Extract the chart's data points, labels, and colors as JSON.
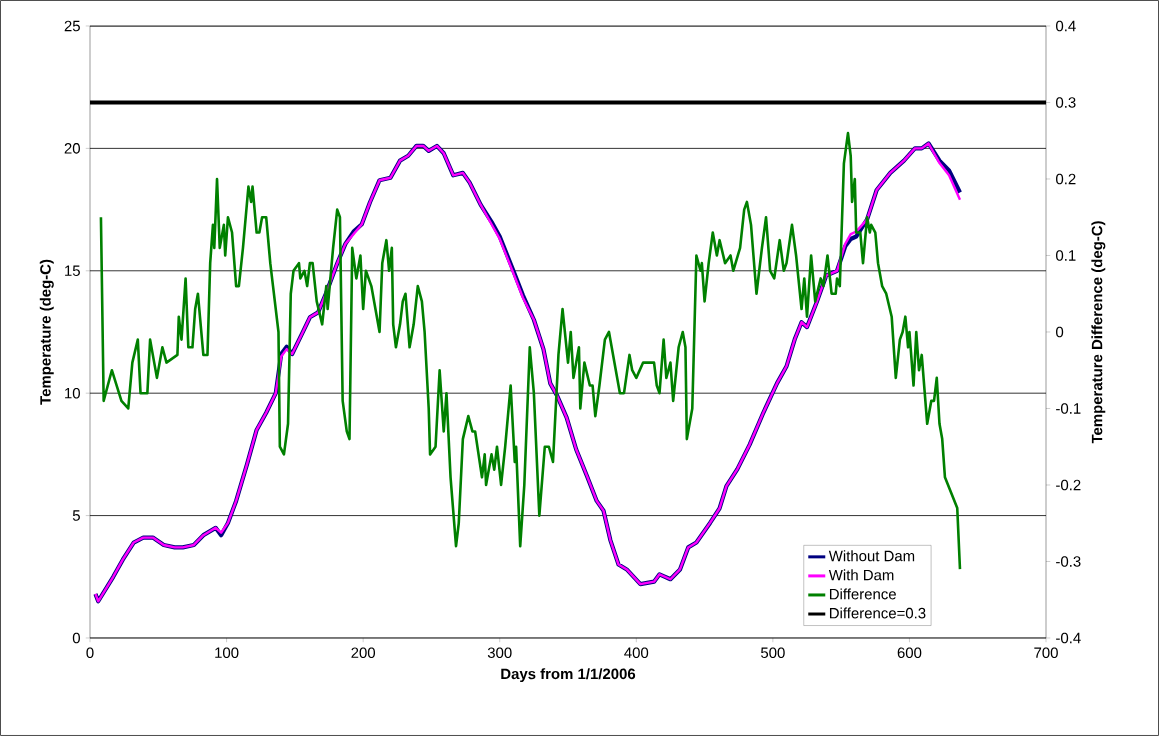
{
  "chart_data": {
    "type": "line",
    "xlabel": "Days from 1/1/2006",
    "ylabel": "Temperature (deg-C)",
    "y2label": "Temperature Difference (deg-C)",
    "xlim": [
      0,
      700
    ],
    "xticks": [
      0,
      100,
      200,
      300,
      400,
      500,
      600,
      700
    ],
    "ylim": [
      0,
      25
    ],
    "yticks": [
      0,
      5,
      10,
      15,
      20,
      25
    ],
    "y2lim": [
      -0.4,
      0.4
    ],
    "y2ticks": [
      -0.4,
      -0.3,
      -0.2,
      -0.1,
      0,
      0.1,
      0.2,
      0.3,
      0.4
    ],
    "grid": "y",
    "legend": "bottom right",
    "series": [
      {
        "name": "Without Dam",
        "color": "#000080",
        "x": [
          4,
          6,
          17,
          24,
          32,
          39,
          46,
          54,
          62,
          68,
          76,
          83,
          92,
          96,
          101,
          107,
          115,
          122,
          129,
          136,
          140,
          144,
          148,
          155,
          161,
          167,
          173,
          181,
          187,
          193,
          199,
          205,
          212,
          220,
          227,
          233,
          239,
          244,
          248,
          254,
          259,
          266,
          273,
          278,
          286,
          294,
          300,
          310,
          317,
          325,
          332,
          337,
          342,
          349,
          356,
          364,
          371,
          376,
          381,
          387,
          393,
          403,
          413,
          417,
          425,
          432,
          438,
          444,
          454,
          461,
          466,
          474,
          483,
          493,
          503,
          510,
          516,
          521,
          525,
          532,
          539,
          547,
          553,
          557,
          561,
          569,
          576,
          586,
          596,
          604,
          609,
          614,
          622,
          629,
          637
        ],
        "values": [
          1.8,
          1.5,
          2.5,
          3.2,
          3.9,
          4.1,
          4.1,
          3.8,
          3.7,
          3.7,
          3.8,
          4.2,
          4.5,
          4.2,
          4.7,
          5.6,
          7.1,
          8.5,
          9.2,
          10.0,
          11.6,
          11.9,
          11.6,
          12.4,
          13.1,
          13.3,
          14.1,
          15.3,
          16.1,
          16.6,
          16.9,
          17.8,
          18.7,
          18.8,
          19.5,
          19.7,
          20.1,
          20.1,
          19.9,
          20.1,
          19.8,
          18.9,
          19.0,
          18.6,
          17.7,
          17.0,
          16.4,
          15.0,
          14.0,
          13.0,
          11.8,
          10.4,
          9.9,
          9.0,
          7.7,
          6.6,
          5.6,
          5.2,
          4.0,
          3.0,
          2.8,
          2.2,
          2.3,
          2.6,
          2.4,
          2.8,
          3.7,
          3.9,
          4.7,
          5.3,
          6.2,
          6.9,
          7.9,
          9.2,
          10.4,
          11.1,
          12.2,
          12.9,
          12.7,
          13.7,
          14.8,
          15.0,
          16.0,
          16.3,
          16.4,
          17.1,
          18.3,
          19.0,
          19.5,
          20.0,
          20.0,
          20.2,
          19.5,
          19.1,
          18.2
        ]
      },
      {
        "name": "With Dam",
        "color": "#ff00ff",
        "x": [
          4,
          6,
          17,
          24,
          32,
          39,
          46,
          54,
          62,
          68,
          76,
          83,
          92,
          96,
          101,
          107,
          115,
          122,
          129,
          136,
          140,
          144,
          148,
          155,
          161,
          167,
          173,
          181,
          187,
          193,
          199,
          205,
          212,
          220,
          227,
          233,
          239,
          244,
          248,
          254,
          259,
          266,
          273,
          278,
          286,
          294,
          300,
          310,
          317,
          325,
          332,
          337,
          342,
          349,
          356,
          364,
          371,
          376,
          381,
          387,
          393,
          403,
          413,
          417,
          425,
          432,
          438,
          444,
          454,
          461,
          466,
          474,
          483,
          493,
          503,
          510,
          516,
          521,
          525,
          532,
          539,
          547,
          553,
          557,
          561,
          569,
          576,
          586,
          596,
          604,
          609,
          614,
          622,
          629,
          637
        ],
        "values": [
          1.8,
          1.5,
          2.5,
          3.2,
          3.9,
          4.1,
          4.1,
          3.8,
          3.7,
          3.7,
          3.8,
          4.2,
          4.5,
          4.3,
          4.7,
          5.6,
          7.1,
          8.5,
          9.2,
          10.0,
          11.5,
          11.8,
          11.6,
          12.4,
          13.1,
          13.3,
          14.1,
          15.3,
          16.1,
          16.5,
          16.9,
          17.8,
          18.7,
          18.8,
          19.5,
          19.7,
          20.1,
          20.1,
          19.9,
          20.1,
          19.8,
          18.9,
          19.0,
          18.6,
          17.7,
          16.9,
          16.3,
          14.9,
          13.9,
          13.0,
          11.8,
          10.4,
          9.9,
          9.0,
          7.7,
          6.6,
          5.6,
          5.2,
          4.0,
          3.0,
          2.8,
          2.2,
          2.3,
          2.6,
          2.4,
          2.8,
          3.7,
          3.9,
          4.7,
          5.3,
          6.2,
          6.9,
          7.9,
          9.2,
          10.4,
          11.1,
          12.2,
          12.9,
          12.7,
          13.7,
          14.8,
          15.0,
          16.1,
          16.5,
          16.6,
          17.1,
          18.3,
          19.0,
          19.5,
          20.0,
          20.0,
          20.2,
          19.4,
          18.9,
          17.9
        ]
      },
      {
        "name": "Difference",
        "color": "#008000",
        "axis": "y2",
        "x": [
          8,
          10,
          16,
          23,
          28,
          31,
          35,
          37,
          42,
          44,
          49,
          53,
          56,
          64,
          65,
          67,
          70,
          72,
          75,
          77,
          79,
          83,
          86,
          88,
          90,
          91,
          93,
          95,
          98,
          99,
          101,
          104,
          107,
          109,
          112,
          116,
          118,
          119,
          122,
          124,
          126,
          129,
          132,
          134,
          138,
          139,
          142,
          145,
          147,
          149,
          153,
          154,
          157,
          159,
          161,
          163,
          166,
          170,
          173,
          174,
          178,
          181,
          183,
          185,
          188,
          190,
          192,
          195,
          198,
          200,
          202,
          206,
          212,
          214,
          217,
          219,
          221,
          222,
          224,
          227,
          229,
          231,
          234,
          237,
          240,
          243,
          245,
          248,
          249,
          253,
          256,
          259,
          261,
          264,
          268,
          270,
          273,
          277,
          280,
          282,
          287,
          289,
          290,
          294,
          296,
          298,
          301,
          304,
          308,
          311,
          312,
          315,
          318,
          322,
          325,
          329,
          333,
          336,
          339,
          343,
          346,
          350,
          352,
          354,
          358,
          359,
          362,
          366,
          368,
          370,
          373,
          375,
          377,
          380,
          383,
          388,
          391,
          395,
          397,
          400,
          405,
          413,
          415,
          417,
          420,
          422,
          425,
          427,
          431,
          434,
          436,
          437,
          441,
          444,
          447,
          448,
          450,
          453,
          456,
          459,
          461,
          465,
          469,
          471,
          476,
          479,
          481,
          484,
          488,
          492,
          495,
          498,
          501,
          505,
          508,
          510,
          514,
          517,
          521,
          523,
          525,
          528,
          531,
          535,
          537,
          540,
          543,
          546,
          547,
          549,
          552,
          555,
          557,
          558,
          560,
          561,
          564,
          566,
          569,
          571,
          572,
          575,
          577,
          580,
          583,
          587,
          590,
          593,
          595,
          597,
          599,
          600,
          603,
          605,
          607,
          609,
          613,
          616,
          618,
          620,
          622,
          624,
          626,
          635,
          637
        ],
        "values": [
          0.15,
          -0.09,
          -0.05,
          -0.09,
          -0.1,
          -0.04,
          -0.01,
          -0.08,
          -0.08,
          -0.01,
          -0.06,
          -0.02,
          -0.04,
          -0.03,
          0.02,
          -0.01,
          0.07,
          -0.02,
          -0.02,
          0.03,
          0.05,
          -0.03,
          -0.03,
          0.09,
          0.14,
          0.11,
          0.2,
          0.11,
          0.14,
          0.1,
          0.15,
          0.13,
          0.06,
          0.06,
          0.11,
          0.19,
          0.17,
          0.19,
          0.13,
          0.13,
          0.15,
          0.15,
          0.09,
          0.06,
          0.0,
          -0.15,
          -0.16,
          -0.12,
          0.05,
          0.08,
          0.09,
          0.07,
          0.08,
          0.06,
          0.09,
          0.09,
          0.04,
          0.01,
          0.06,
          0.03,
          0.11,
          0.16,
          0.15,
          -0.09,
          -0.13,
          -0.14,
          0.11,
          0.07,
          0.1,
          0.03,
          0.08,
          0.06,
          0.0,
          0.09,
          0.12,
          0.08,
          0.11,
          0.01,
          -0.02,
          0.01,
          0.04,
          0.05,
          -0.02,
          0.01,
          0.06,
          0.04,
          0.0,
          -0.1,
          -0.16,
          -0.15,
          -0.05,
          -0.13,
          -0.08,
          -0.19,
          -0.28,
          -0.25,
          -0.14,
          -0.11,
          -0.13,
          -0.13,
          -0.19,
          -0.16,
          -0.2,
          -0.16,
          -0.18,
          -0.15,
          -0.2,
          -0.15,
          -0.07,
          -0.17,
          -0.15,
          -0.28,
          -0.2,
          -0.02,
          -0.08,
          -0.24,
          -0.15,
          -0.15,
          -0.17,
          -0.03,
          0.03,
          -0.04,
          0.0,
          -0.06,
          -0.02,
          -0.1,
          -0.04,
          -0.07,
          -0.07,
          -0.11,
          -0.07,
          -0.04,
          -0.01,
          0.0,
          -0.03,
          -0.08,
          -0.08,
          -0.03,
          -0.05,
          -0.06,
          -0.04,
          -0.04,
          -0.07,
          -0.08,
          -0.01,
          -0.06,
          -0.04,
          -0.09,
          -0.02,
          0.0,
          -0.02,
          -0.14,
          -0.1,
          0.1,
          0.08,
          0.09,
          0.04,
          0.09,
          0.13,
          0.1,
          0.12,
          0.09,
          0.1,
          0.08,
          0.11,
          0.16,
          0.17,
          0.14,
          0.05,
          0.11,
          0.15,
          0.08,
          0.07,
          0.12,
          0.08,
          0.09,
          0.14,
          0.1,
          0.03,
          0.07,
          0.02,
          0.1,
          0.04,
          0.07,
          0.06,
          0.1,
          0.05,
          0.05,
          0.07,
          0.06,
          0.22,
          0.26,
          0.23,
          0.17,
          0.2,
          0.13,
          0.13,
          0.09,
          0.15,
          0.13,
          0.14,
          0.13,
          0.09,
          0.06,
          0.05,
          0.02,
          -0.06,
          -0.01,
          0.0,
          0.02,
          -0.02,
          0.0,
          -0.07,
          0.0,
          -0.05,
          -0.03,
          -0.12,
          -0.09,
          -0.09,
          -0.06,
          -0.12,
          -0.14,
          -0.19,
          -0.23,
          -0.31
        ]
      },
      {
        "name": "Difference=0.3",
        "color": "#000000",
        "axis": "y2",
        "x": [
          0,
          700
        ],
        "values": [
          0.3,
          0.3
        ]
      }
    ]
  }
}
